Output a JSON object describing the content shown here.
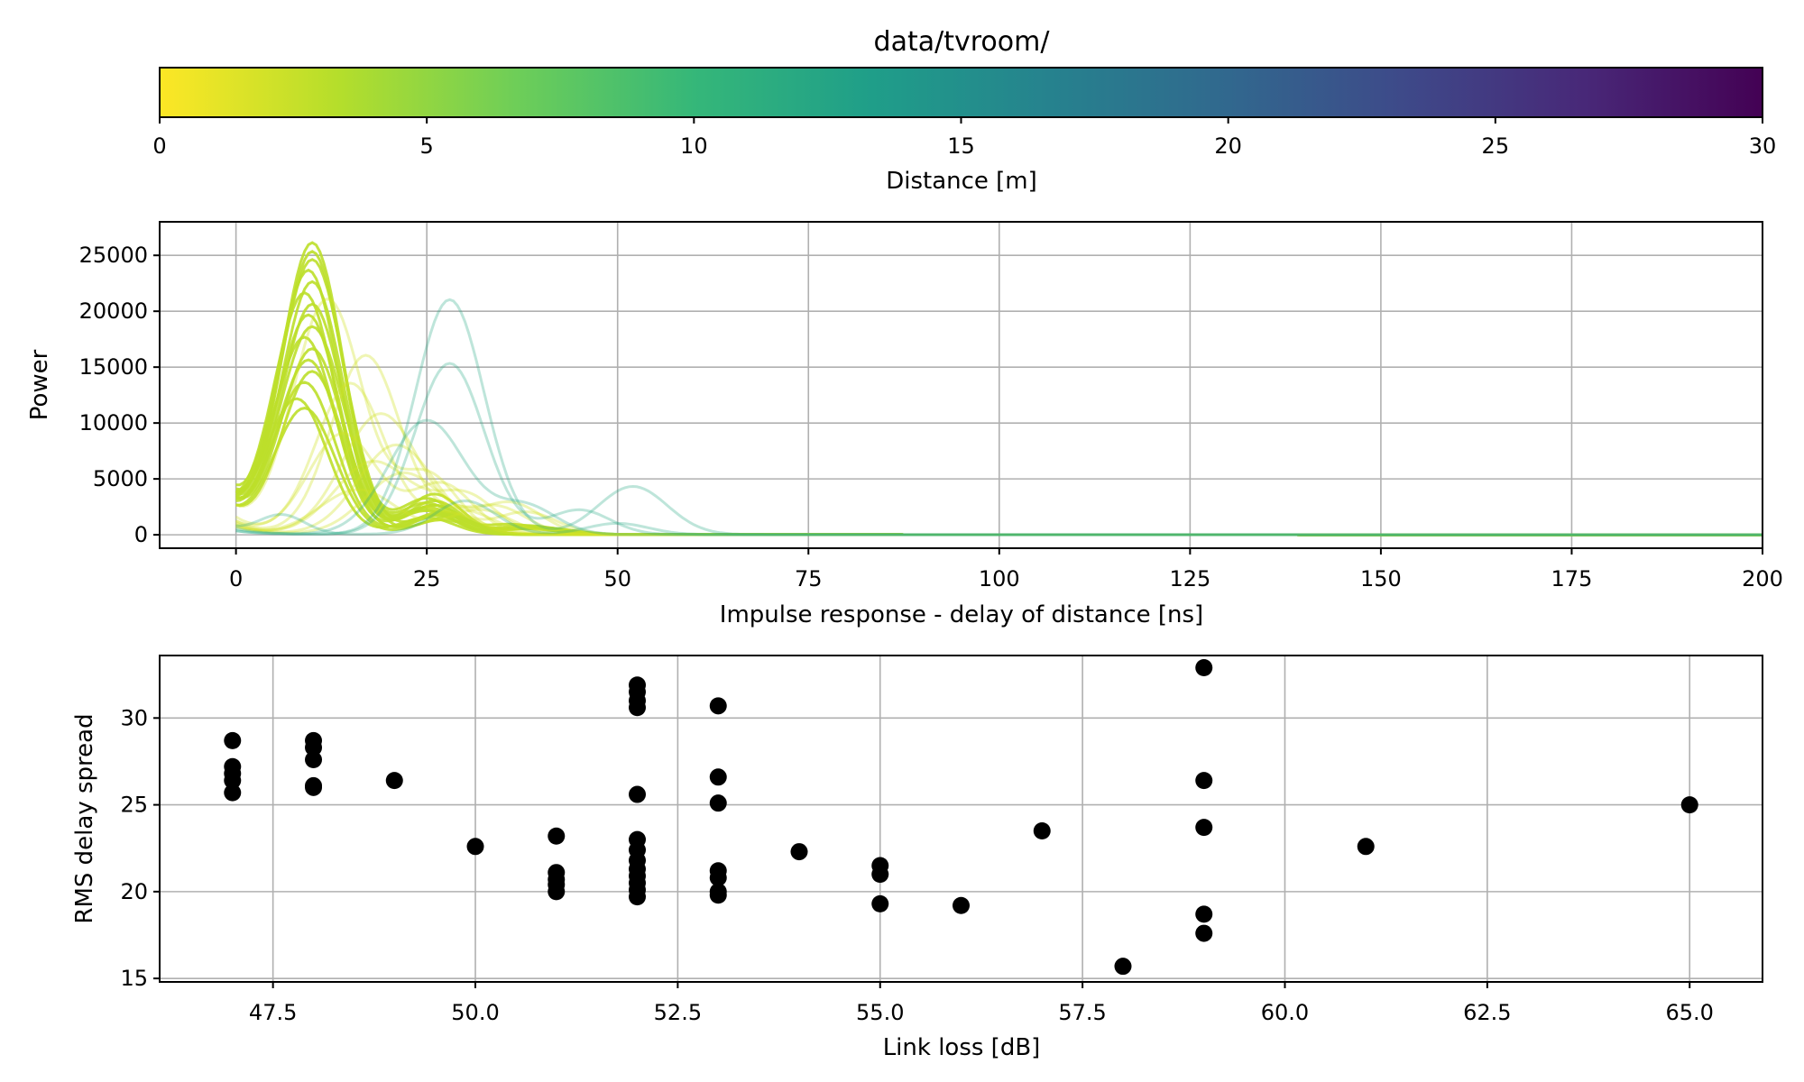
{
  "chart_data": [
    {
      "type": "colorbar",
      "title": "data/tvroom/",
      "xlabel": "Distance [m]",
      "range": [
        0,
        30
      ],
      "ticks": [
        "0",
        "5",
        "10",
        "15",
        "20",
        "25",
        "30"
      ],
      "tick_values": [
        0,
        5,
        10,
        15,
        20,
        25,
        30
      ],
      "colormap": "viridis_r",
      "colors": [
        "#fde725",
        "#b5de2b",
        "#6ece58",
        "#35b779",
        "#1f9e89",
        "#26828e",
        "#31688e",
        "#3e4989",
        "#482878",
        "#440154"
      ]
    },
    {
      "type": "line",
      "xlabel": "Impulse response - delay of distance [ns]",
      "ylabel": "Power",
      "xlim": [
        -10,
        200
      ],
      "ylim": [
        -1200,
        28000
      ],
      "xticks": [
        "0",
        "25",
        "50",
        "75",
        "100",
        "125",
        "150",
        "175",
        "200"
      ],
      "xtick_values": [
        0,
        25,
        50,
        75,
        100,
        125,
        150,
        175,
        200
      ],
      "yticks": [
        "0",
        "5000",
        "10000",
        "15000",
        "20000",
        "25000"
      ],
      "ytick_values": [
        0,
        5000,
        10000,
        15000,
        20000,
        25000
      ],
      "grid": true,
      "series": [
        {
          "distance": 3,
          "alpha": 0.9,
          "peaks": [
            [
              10,
              26000,
              4
            ],
            [
              26,
              2600,
              3.5
            ],
            [
              38,
              500,
              4
            ]
          ],
          "base": 2500
        },
        {
          "distance": 3,
          "alpha": 0.9,
          "peaks": [
            [
              10,
              25200,
              4
            ],
            [
              25,
              3200,
              3.5
            ],
            [
              38,
              800,
              4
            ]
          ],
          "base": 2800
        },
        {
          "distance": 3,
          "alpha": 0.9,
          "peaks": [
            [
              10,
              24500,
              4.2
            ],
            [
              27,
              2000,
              3.5
            ]
          ],
          "base": 2200
        },
        {
          "distance": 3,
          "alpha": 0.9,
          "peaks": [
            [
              9.5,
              23500,
              4
            ],
            [
              26,
              3600,
              3.5
            ],
            [
              40,
              600,
              4
            ]
          ],
          "base": 3000
        },
        {
          "distance": 3,
          "alpha": 0.9,
          "peaks": [
            [
              10,
              22500,
              4
            ],
            [
              25,
              2800,
              3.5
            ]
          ],
          "base": 2600
        },
        {
          "distance": 3,
          "alpha": 0.9,
          "peaks": [
            [
              9,
              21500,
              4
            ],
            [
              27,
              1800,
              3.5
            ]
          ],
          "base": 2000
        },
        {
          "distance": 3,
          "alpha": 0.9,
          "peaks": [
            [
              10,
              20500,
              4
            ],
            [
              25,
              2400,
              3.5
            ],
            [
              36,
              900,
              4
            ]
          ],
          "base": 2400
        },
        {
          "distance": 3,
          "alpha": 0.9,
          "peaks": [
            [
              9.5,
              19500,
              4
            ],
            [
              26,
              3000,
              3.5
            ]
          ],
          "base": 2900
        },
        {
          "distance": 3,
          "alpha": 0.9,
          "peaks": [
            [
              10,
              18500,
              4.2
            ],
            [
              28,
              1600,
              3.5
            ]
          ],
          "base": 2100
        },
        {
          "distance": 3,
          "alpha": 0.9,
          "peaks": [
            [
              9,
              17500,
              4
            ],
            [
              25,
              2200,
              3.5
            ]
          ],
          "base": 2500
        },
        {
          "distance": 3,
          "alpha": 0.9,
          "peaks": [
            [
              10,
              16500,
              4
            ],
            [
              26,
              2600,
              3.5
            ],
            [
              39,
              700,
              4
            ]
          ],
          "base": 2700
        },
        {
          "distance": 3,
          "alpha": 0.9,
          "peaks": [
            [
              9.5,
              15500,
              4
            ],
            [
              27,
              1900,
              3.5
            ]
          ],
          "base": 2300
        },
        {
          "distance": 3,
          "alpha": 0.9,
          "peaks": [
            [
              10,
              14500,
              4
            ],
            [
              25,
              2100,
              3.5
            ]
          ],
          "base": 2000
        },
        {
          "distance": 3,
          "alpha": 0.9,
          "peaks": [
            [
              9,
              13500,
              4
            ],
            [
              26,
              1700,
              3.5
            ]
          ],
          "base": 1900
        },
        {
          "distance": 3,
          "alpha": 0.9,
          "peaks": [
            [
              8,
              12000,
              4
            ],
            [
              25,
              1500,
              3.5
            ]
          ],
          "base": 1800
        },
        {
          "distance": 3,
          "alpha": 0.9,
          "peaks": [
            [
              9,
              11200,
              4
            ],
            [
              27,
              1300,
              3.5
            ]
          ],
          "base": 1700
        },
        {
          "distance": 2,
          "alpha": 0.35,
          "peaks": [
            [
              17,
              16000,
              4.5
            ],
            [
              30,
              2000,
              4
            ]
          ],
          "base": 1200
        },
        {
          "distance": 2,
          "alpha": 0.35,
          "peaks": [
            [
              19,
              10800,
              5
            ],
            [
              34,
              2500,
              4
            ]
          ],
          "base": 1000
        },
        {
          "distance": 2,
          "alpha": 0.35,
          "peaks": [
            [
              15,
              13500,
              4.5
            ],
            [
              28,
              1800,
              4
            ]
          ],
          "base": 1500
        },
        {
          "distance": 2,
          "alpha": 0.35,
          "peaks": [
            [
              21,
              8000,
              5
            ],
            [
              38,
              2000,
              4
            ]
          ],
          "base": 900
        },
        {
          "distance": 2,
          "alpha": 0.35,
          "peaks": [
            [
              12,
              21000,
              4.5
            ],
            [
              25,
              5400,
              4
            ]
          ],
          "base": 2000
        },
        {
          "distance": 2,
          "alpha": 0.35,
          "peaks": [
            [
              18,
              6500,
              5
            ],
            [
              30,
              3500,
              4
            ]
          ],
          "base": 800
        },
        {
          "distance": 2,
          "alpha": 0.35,
          "peaks": [
            [
              14,
              9000,
              4.5
            ],
            [
              27,
              4500,
              4
            ]
          ],
          "base": 1100
        },
        {
          "distance": 2,
          "alpha": 0.35,
          "peaks": [
            [
              22,
              5500,
              5
            ],
            [
              36,
              2800,
              4
            ]
          ],
          "base": 700
        },
        {
          "distance": 2,
          "alpha": 0.35,
          "peaks": [
            [
              16,
              4000,
              5
            ],
            [
              32,
              2200,
              4
            ]
          ],
          "base": 600
        },
        {
          "distance": 12,
          "alpha": 0.3,
          "peaks": [
            [
              28,
              21000,
              4.5
            ],
            [
              52,
              4300,
              4.5
            ]
          ],
          "base": 300
        },
        {
          "distance": 12,
          "alpha": 0.3,
          "peaks": [
            [
              28,
              15300,
              4.5
            ],
            [
              45,
              2200,
              4
            ]
          ],
          "base": 300
        },
        {
          "distance": 12,
          "alpha": 0.3,
          "peaks": [
            [
              25,
              10200,
              5
            ],
            [
              38,
              2500,
              4
            ]
          ],
          "base": 500
        },
        {
          "distance": 12,
          "alpha": 0.3,
          "peaks": [
            [
              6,
              1700,
              3
            ],
            [
              30,
              3000,
              4
            ],
            [
              50,
              1000,
              4
            ]
          ],
          "base": 500
        }
      ]
    },
    {
      "type": "scatter",
      "xlabel": "Link loss [dB]",
      "ylabel": "RMS delay spread",
      "xlim": [
        46.1,
        65.9
      ],
      "ylim": [
        14.8,
        33.6
      ],
      "xticks": [
        "47.5",
        "50.0",
        "52.5",
        "55.0",
        "57.5",
        "60.0",
        "62.5",
        "65.0"
      ],
      "xtick_values": [
        47.5,
        50.0,
        52.5,
        55.0,
        57.5,
        60.0,
        62.5,
        65.0
      ],
      "yticks": [
        "15",
        "20",
        "25",
        "30"
      ],
      "ytick_values": [
        15,
        20,
        25,
        30
      ],
      "grid": true,
      "color": "#000000",
      "points": [
        [
          47,
          28.7
        ],
        [
          47,
          27.2
        ],
        [
          47,
          26.8
        ],
        [
          47,
          26.4
        ],
        [
          47,
          25.7
        ],
        [
          48,
          28.7
        ],
        [
          48,
          28.3
        ],
        [
          48,
          27.6
        ],
        [
          48,
          26.1
        ],
        [
          48,
          26.0
        ],
        [
          49,
          26.4
        ],
        [
          50,
          22.6
        ],
        [
          51,
          23.2
        ],
        [
          51,
          21.1
        ],
        [
          51,
          20.7
        ],
        [
          51,
          20.4
        ],
        [
          51,
          20.0
        ],
        [
          52,
          31.9
        ],
        [
          52,
          31.5
        ],
        [
          52,
          31.0
        ],
        [
          52,
          30.6
        ],
        [
          52,
          25.6
        ],
        [
          52,
          23.0
        ],
        [
          52,
          22.4
        ],
        [
          52,
          21.8
        ],
        [
          52,
          21.3
        ],
        [
          52,
          20.9
        ],
        [
          52,
          20.5
        ],
        [
          52,
          20.1
        ],
        [
          52,
          19.7
        ],
        [
          53,
          30.7
        ],
        [
          53,
          26.6
        ],
        [
          53,
          25.1
        ],
        [
          53,
          21.2
        ],
        [
          53,
          20.8
        ],
        [
          53,
          20.0
        ],
        [
          53,
          19.8
        ],
        [
          54,
          22.3
        ],
        [
          55,
          21.5
        ],
        [
          55,
          21.0
        ],
        [
          55,
          19.3
        ],
        [
          56,
          19.2
        ],
        [
          57,
          23.5
        ],
        [
          58,
          15.7
        ],
        [
          59,
          32.9
        ],
        [
          59,
          26.4
        ],
        [
          59,
          23.7
        ],
        [
          59,
          18.7
        ],
        [
          59,
          17.6
        ],
        [
          61,
          22.6
        ],
        [
          65,
          25.0
        ]
      ]
    }
  ]
}
